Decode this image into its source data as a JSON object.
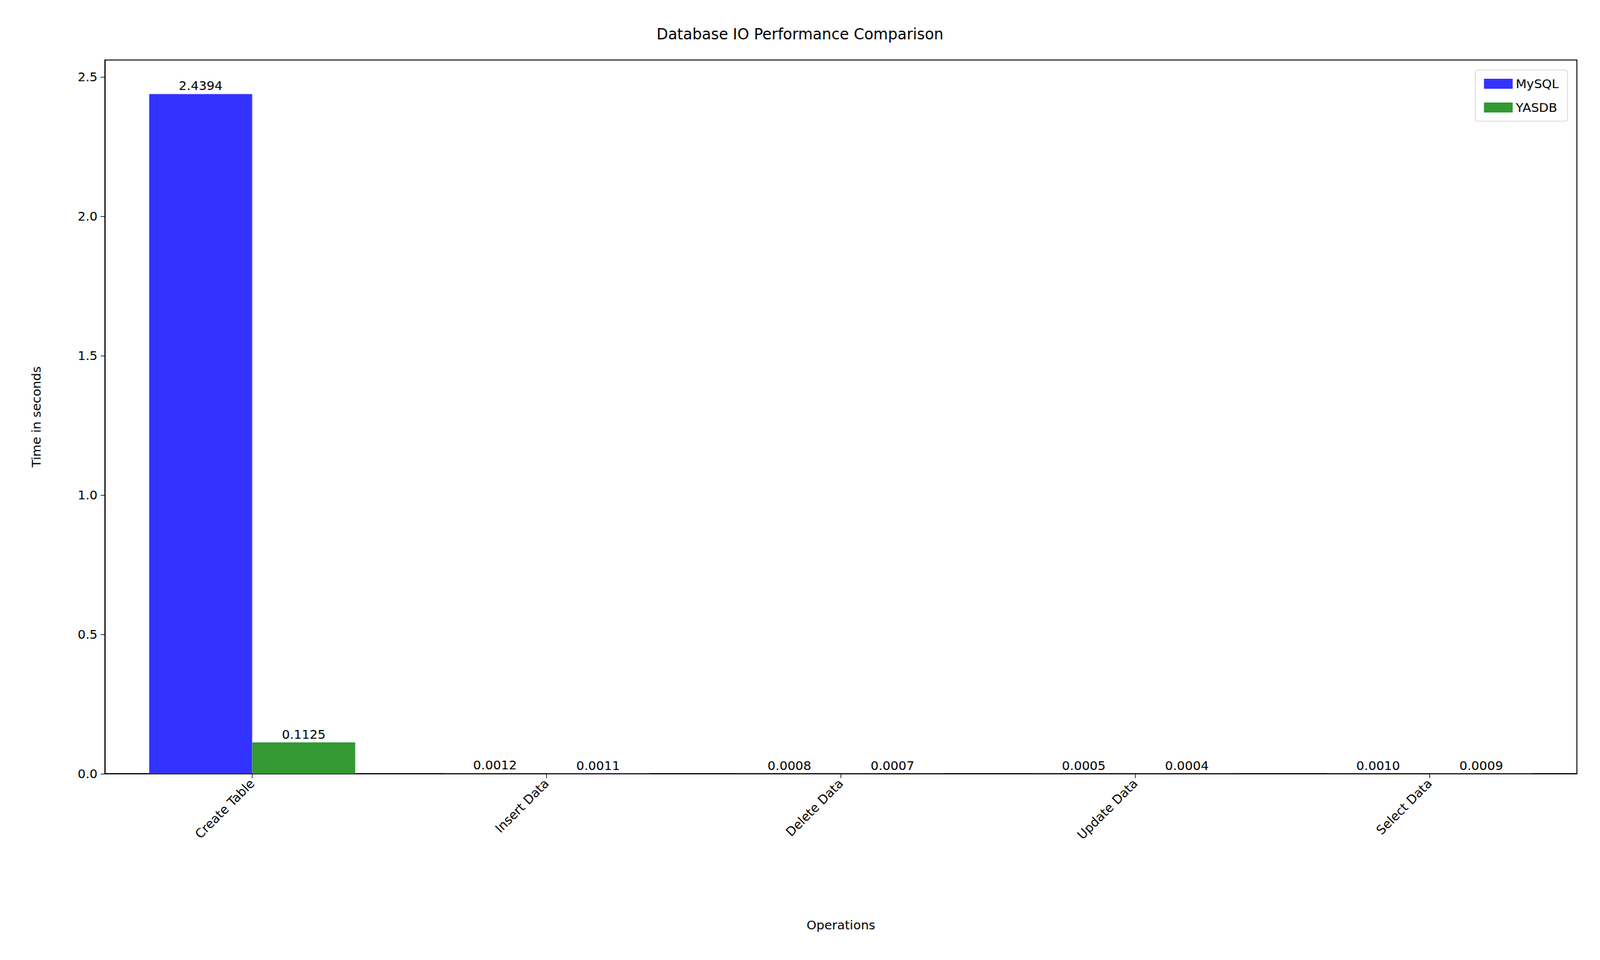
{
  "chart_data": {
    "type": "bar",
    "title": "Database IO Performance Comparison",
    "x_label": "Operations",
    "y_label": "Time in seconds",
    "categories": [
      "Create Table",
      "Insert Data",
      "Delete Data",
      "Update Data",
      "Select Data"
    ],
    "series": [
      {
        "name": "MySQL",
        "color": "#3333ff",
        "values": [
          2.4394,
          0.0012,
          0.0008,
          0.0005,
          0.001
        ],
        "value_labels": [
          "2.4394",
          "0.0012",
          "0.0008",
          "0.0005",
          "0.0010"
        ]
      },
      {
        "name": "YASDB",
        "color": "#339933",
        "values": [
          0.1125,
          0.0011,
          0.0007,
          0.0004,
          0.0009
        ],
        "value_labels": [
          "0.1125",
          "0.0011",
          "0.0007",
          "0.0004",
          "0.0009"
        ]
      }
    ],
    "ylim": [
      0,
      2.5614
    ],
    "yticks": [
      {
        "value": 0,
        "label": "0.0"
      },
      {
        "value": 0.5,
        "label": "0.5"
      },
      {
        "value": 1,
        "label": "1.0"
      },
      {
        "value": 1.5,
        "label": "1.5"
      },
      {
        "value": 2,
        "label": "2.0"
      },
      {
        "value": 2.5,
        "label": "2.5"
      }
    ],
    "grid": false,
    "legend": "upper right",
    "data_labels": true
  }
}
